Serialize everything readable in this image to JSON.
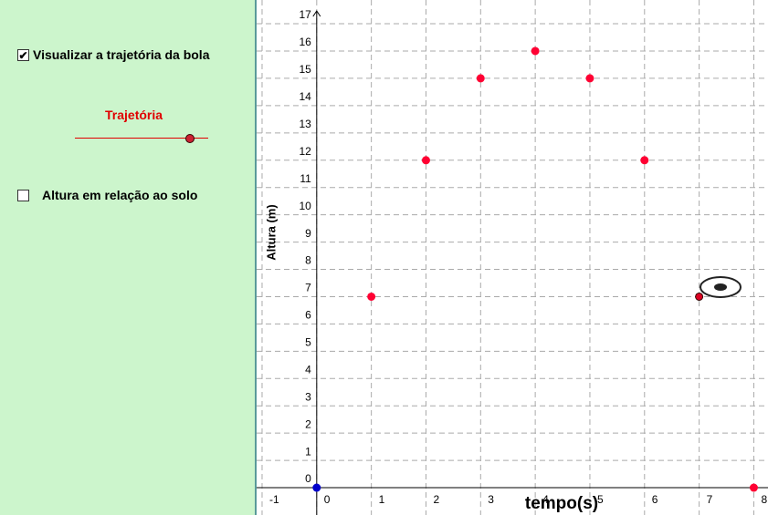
{
  "panel": {
    "checkbox_1": "Visualizar a trajetória da bola",
    "slider_label": "Trajetória",
    "checkbox_2": "Altura em relação ao solo"
  },
  "chart_data": {
    "type": "scatter",
    "x_label": "tempo(s)",
    "y_label": "Altura (m)",
    "xlim": [
      -1.1,
      8.26
    ],
    "ylim": [
      -1.0,
      17.87
    ],
    "xticks": [
      -1,
      0,
      1,
      2,
      3,
      4,
      5,
      6,
      7,
      8
    ],
    "yticks": [
      0,
      1,
      2,
      3,
      4,
      5,
      6,
      7,
      8,
      9,
      10,
      11,
      12,
      13,
      14,
      15,
      16,
      17
    ],
    "grid": true,
    "series": [
      {
        "color": "#ff0033",
        "x": [
          1,
          2,
          3,
          4,
          5,
          6,
          8
        ],
        "values": [
          7,
          12,
          15,
          16,
          15,
          12,
          0
        ]
      },
      {
        "color": "#dd0022",
        "x": [
          7
        ],
        "values": [
          7
        ]
      },
      {
        "color": "#0000cc",
        "x": [
          0
        ],
        "values": [
          0
        ]
      }
    ]
  }
}
